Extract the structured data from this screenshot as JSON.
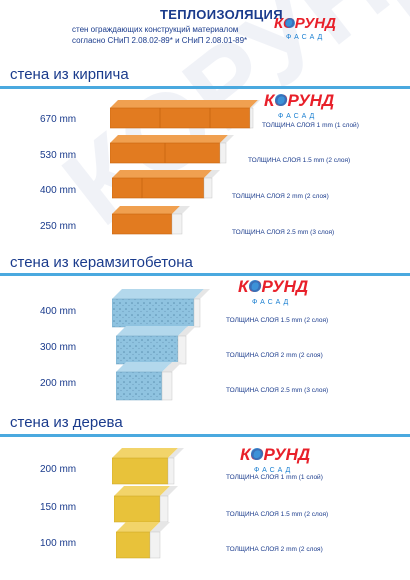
{
  "header": {
    "title": "ТЕПЛОИЗОЛЯЦИЯ",
    "subtitle_line1": "стен ограждающих конструкций материалом",
    "subtitle_line2": "согласно СНиП 2.08.02-89* и СНиП 2.08.01-89*"
  },
  "brand": {
    "name": "КОРУНД",
    "sub": "ФАСАД",
    "red": "#e8202a",
    "blue": "#1a7fd1"
  },
  "watermark": "КОРУНД",
  "colors": {
    "heading": "#1a3b8c",
    "rule": "#4aa9df",
    "brick": "#e27b20",
    "claydite": "#8fc3e0",
    "wood": "#e8c23a",
    "insulation": "#f2f2f2"
  },
  "sections": [
    {
      "title": "стена из кирпича",
      "rows": [
        {
          "thickness": "670 mm",
          "layer": "ТОЛЩИНА СЛОЯ 1 mm (1 слой)"
        },
        {
          "thickness": "530 mm",
          "layer": "ТОЛЩИНА СЛОЯ 1.5 mm (2 слоя)"
        },
        {
          "thickness": "400 mm",
          "layer": "ТОЛЩИНА СЛОЯ 2 mm (2 слоя)"
        },
        {
          "thickness": "250 mm",
          "layer": "ТОЛЩИНА СЛОЯ 2.5 mm (3 слоя)"
        }
      ]
    },
    {
      "title": "стена из керамзитобетона",
      "rows": [
        {
          "thickness": "400 mm",
          "layer": "ТОЛЩИНА СЛОЯ 1.5 mm (2 слоя)"
        },
        {
          "thickness": "300 mm",
          "layer": "ТОЛЩИНА СЛОЯ 2 mm (2 слоя)"
        },
        {
          "thickness": "200 mm",
          "layer": "ТОЛЩИНА СЛОЯ 2.5 mm (3 слоя)"
        }
      ]
    },
    {
      "title": "стена из дерева",
      "rows": [
        {
          "thickness": "200 mm",
          "layer": "ТОЛЩИНА СЛОЯ 1 mm (1 слой)"
        },
        {
          "thickness": "150 mm",
          "layer": "ТОЛЩИНА СЛОЯ 1.5 mm (2 слоя)"
        },
        {
          "thickness": "100 mm",
          "layer": "ТОЛЩИНА СЛОЯ 2 mm (2 слоя)"
        }
      ]
    }
  ]
}
